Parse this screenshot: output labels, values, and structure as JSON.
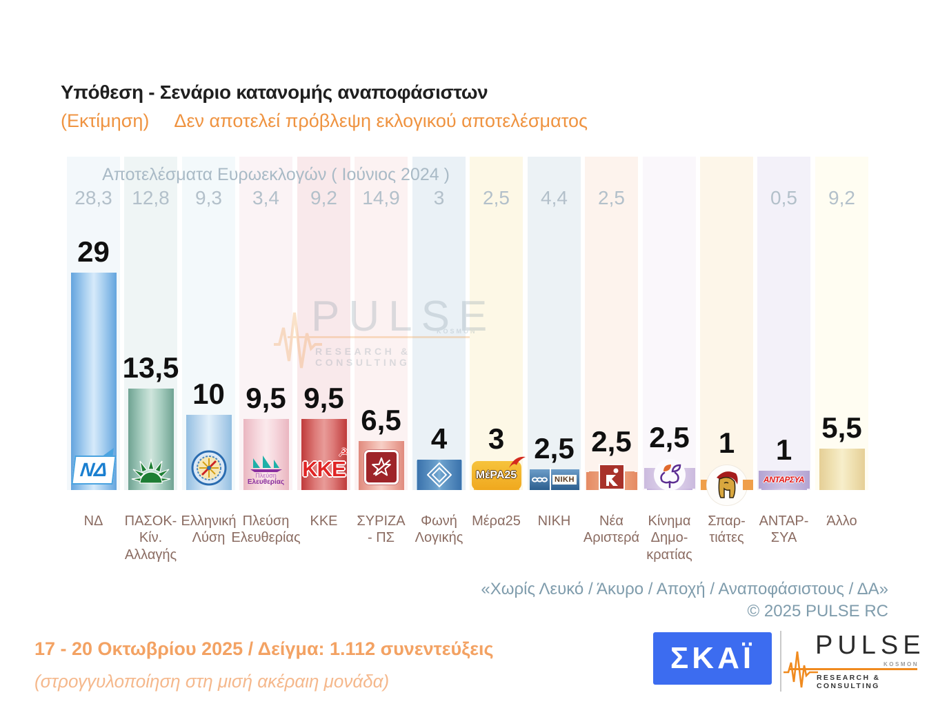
{
  "title": "Υπόθεση - Σενάριο κατανομής αναποφάσιστων",
  "subtitle": {
    "estimate": "(Εκτίμηση)",
    "disclaimer": "Δεν αποτελεί πρόβλεψη εκλογικού αποτελέσματος"
  },
  "euro_header": "Αποτελέσματα Ευρωεκλογών  ( Ιούνιος 2024 )",
  "chart_data": {
    "type": "bar",
    "title": "Υπόθεση - Σενάριο κατανομής αναποφάσιστων (Εκτίμηση)",
    "categories": [
      "ΝΔ",
      "ΠΑΣΟΚ-Κίν. Αλλαγής",
      "Ελληνική Λύση",
      "Πλεύση Ελευθερίας",
      "ΚΚΕ",
      "ΣΥΡΙΖΑ - ΠΣ",
      "Φωνή Λογικής",
      "Μέρα25",
      "ΝΙΚΗ",
      "Νέα Αριστερά",
      "Κίνημα Δημοκρατίας",
      "Σπαρτιάτες",
      "ΑΝΤΑΡΣΥΑ",
      "Άλλο"
    ],
    "series": [
      {
        "name": "Εκτίμηση 17-20 Οκτωβρίου 2025",
        "values": [
          29,
          13.5,
          10,
          9.5,
          9.5,
          6.5,
          4,
          3,
          2.5,
          2.5,
          2.5,
          1,
          1,
          5.5
        ]
      },
      {
        "name": "Αποτελέσματα Ευρωεκλογών (Ιούνιος 2024)",
        "values": [
          28.3,
          12.8,
          9.3,
          3.4,
          9.2,
          14.9,
          3,
          2.5,
          4.4,
          2.5,
          null,
          null,
          0.5,
          9.2
        ]
      }
    ],
    "ylabel": "%",
    "xlabel": "",
    "ylim": [
      0,
      44.5
    ],
    "grid": false,
    "legend_position": "none"
  },
  "columns": [
    {
      "name": "ΝΔ",
      "label": "ΝΔ",
      "value": 29,
      "value_label": "29",
      "euro_label": "28,3",
      "band": "#f3f8fb",
      "bar": [
        "#63a4de",
        "#a9d0f0",
        "#d6eafa"
      ],
      "logo_text": "ΝΔ"
    },
    {
      "name": "ΠΑΣΟΚ-Κίν. Αλλαγής",
      "label": "ΠΑΣΟΚ-Κίν.\nΑλλαγής",
      "value": 13.5,
      "value_label": "13,5",
      "euro_label": "12,8",
      "band": "#eff5f5",
      "bar": [
        "#6fa392",
        "#aacfc2",
        "#cfe5dc"
      ]
    },
    {
      "name": "Ελληνική Λύση",
      "label": "Ελληνική\nΛύση",
      "value": 10,
      "value_label": "10",
      "euro_label": "9,3",
      "band": "#f3f9fb",
      "bar": [
        "#94bfe2",
        "#c4dcf0",
        "#e2f0fa"
      ]
    },
    {
      "name": "Πλεύση Ελευθερίας",
      "label": "Πλεύση\nΕλευθερίας",
      "value": 9.5,
      "value_label": "9,5",
      "euro_label": "3,4",
      "band": "#fbf3f5",
      "bar": [
        "#eab6c0",
        "#f6d7dd",
        "#fbe9ec"
      ],
      "logo_text_1": "Πλεύση",
      "logo_text_2": "Ελευθερίας"
    },
    {
      "name": "ΚΚΕ",
      "label": "ΚΚΕ",
      "value": 9.5,
      "value_label": "9,5",
      "euro_label": "9,2",
      "band": "#f9e9eb",
      "bar": [
        "#bf3a3a",
        "#dd7a78",
        "#e89b98"
      ],
      "logo_text": "ΚΚΕ"
    },
    {
      "name": "ΣΥΡΙΖΑ - ΠΣ",
      "label": "ΣΥΡΙΖΑ\n- ΠΣ",
      "value": 6.5,
      "value_label": "6,5",
      "euro_label": "14,9",
      "band": "#fcf2f2",
      "bar": [
        "#e08a7d",
        "#f0b4a9",
        "#f7cfc6"
      ]
    },
    {
      "name": "Φωνή Λογικής",
      "label": "Φωνή\nΛογικής",
      "value": 4,
      "value_label": "4",
      "euro_label": "3",
      "band": "#eaf1f6",
      "bar": [
        "#98bedf",
        "#c4dcef",
        "#dcebf7"
      ]
    },
    {
      "name": "Μέρα25",
      "label": "Μέρα25",
      "value": 3,
      "value_label": "3",
      "euro_label": "2,5",
      "band": "#fdf8e6",
      "bar": [
        "#f0c04a",
        "#f6d77e",
        "#fae6a8"
      ],
      "logo_text": "ΜέΡΑ25"
    },
    {
      "name": "ΝΙΚΗ",
      "label": "ΝΙΚΗ",
      "value": 2.5,
      "value_label": "2,5",
      "euro_label": "4,4",
      "band": "#ecf2f5",
      "bar": [
        "#8fb2cc",
        "#b8d2e4",
        "#cfe2ef"
      ],
      "logo_text": "ΝΙΚΗ"
    },
    {
      "name": "Νέα Αριστερά",
      "label": "Νέα\nΑριστερά",
      "value": 2.5,
      "value_label": "2,5",
      "euro_label": "2,5",
      "band": "#fdf3ed",
      "bar": [
        "#e08a64",
        "#eeab8a",
        "#f4c0a4"
      ]
    },
    {
      "name": "Κίνημα Δημοκρατίας",
      "label": "Κίνημα\nΔημο-\nκρατίας",
      "value": 2.5,
      "value_label": "2,5",
      "euro_label": "",
      "band": "#faf7fb",
      "bar": [
        "#c2aeda",
        "#d6c8e7",
        "#e3d9ef"
      ]
    },
    {
      "name": "Σπαρτιάτες",
      "label": "Σπαρ-\nτιάτες",
      "value": 1,
      "value_label": "1",
      "euro_label": "",
      "band": "#fdf6e9",
      "bar": [
        "#eda04c",
        "#f4bd7c",
        "#f8d0a0"
      ]
    },
    {
      "name": "ΑΝΤΑΡΣΥΑ",
      "label": "ΑΝΤΑΡ-\nΣΥΑ",
      "value": 1,
      "value_label": "1",
      "euro_label": "0,5",
      "band": "#f3f1f9",
      "bar": [
        "#b4a6d4",
        "#cdc2e2",
        "#dcd4ec"
      ],
      "logo_text": "ΑΝΤΑΡΣΥΑ"
    },
    {
      "name": "Άλλο",
      "label": "Άλλο",
      "value": 5.5,
      "value_label": "5,5",
      "euro_label": "9,2",
      "band": "#fffdf2",
      "bar": [
        "#e5cf96",
        "#f0e2b4",
        "#f7eecb"
      ]
    }
  ],
  "footnote_line1": "«Χωρίς Λευκό / Άκυρο / Αποχή / Αναποφάσιστους / ΔΑ»",
  "footnote_line2": "©  2025  PULSE RC",
  "bottom": {
    "line1": "17 - 20 Οκτωβρίου 2025  /  Δείγμα:  1.112 συνεντεύξεις",
    "line2": "(στρογγυλοποίηση στη μισή ακέραιη μονάδα)"
  },
  "logos": {
    "skai": "ΣΚΑΪ",
    "pulse": "PULSE",
    "pulse_kosmon": "KOSMON",
    "pulse_sub": "RESEARCH & CONSULTING",
    "kke_hammer_sickle": "☭"
  },
  "watermark": {
    "pulse": "PULSE",
    "kosmon": "KOSMON",
    "sub": "RESEARCH & CONSULTING"
  },
  "accent_colors": {
    "orange_subtitle": "#ef9340",
    "orange_bottom": "#f3a263",
    "gray_blue_note": "#7f9cac",
    "skai_blue": "#3c6cf0",
    "pulse_orange": "#f08a1e",
    "party_name_brown": "#8a6b61"
  }
}
